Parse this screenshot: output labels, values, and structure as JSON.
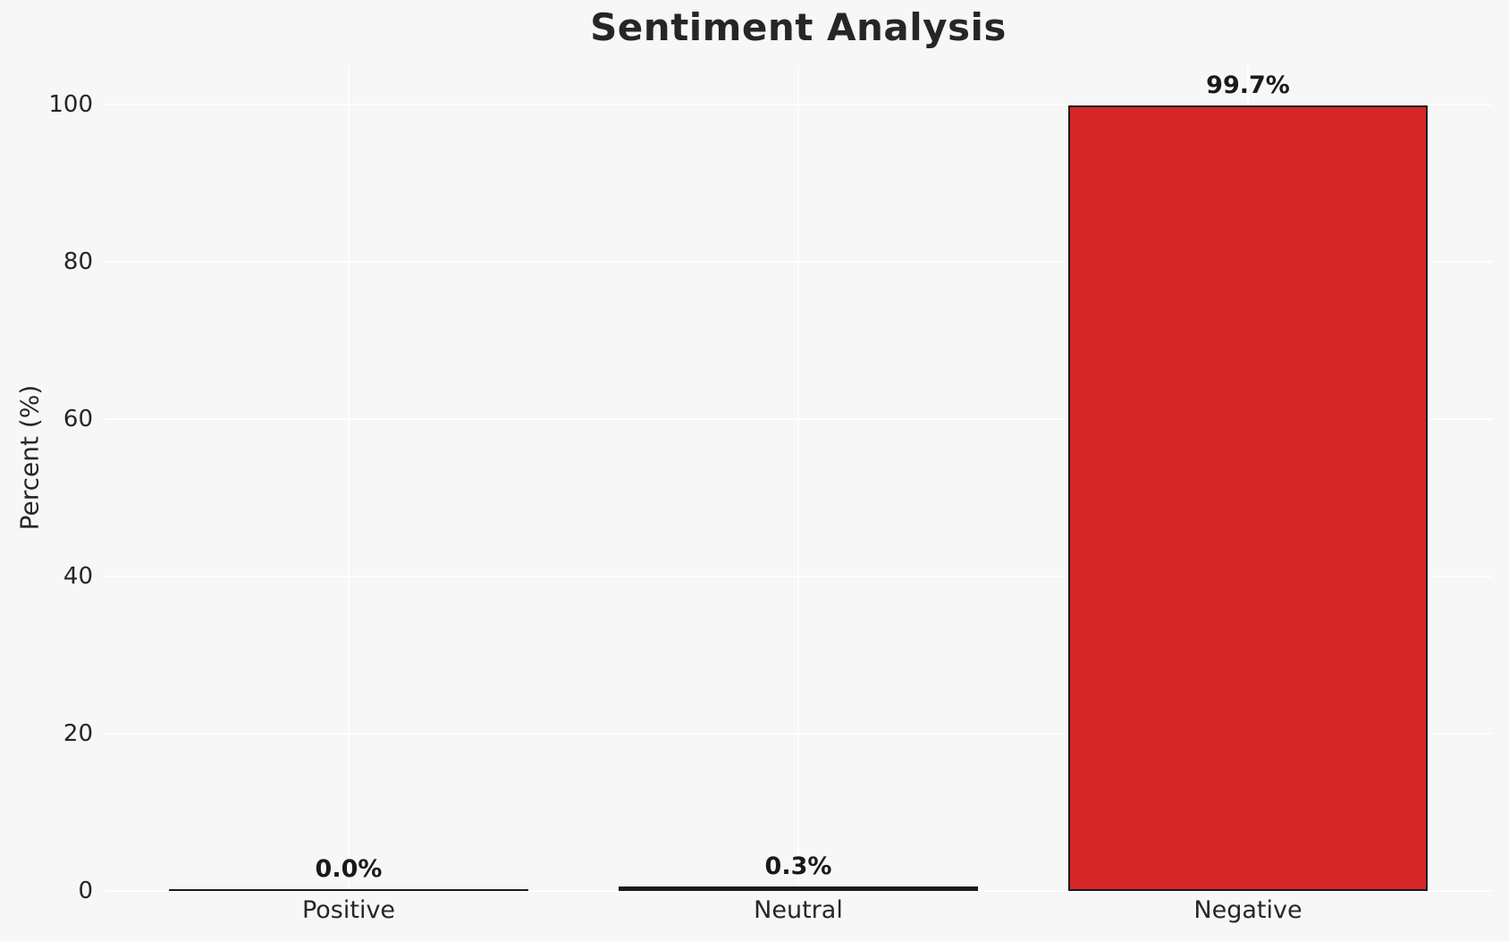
{
  "chart_data": {
    "type": "bar",
    "title": "Sentiment Analysis",
    "xlabel": "",
    "ylabel": "Percent (%)",
    "categories": [
      "Positive",
      "Neutral",
      "Negative"
    ],
    "values": [
      0.0,
      0.3,
      99.7
    ],
    "value_labels": [
      "0.0%",
      "0.3%",
      "99.7%"
    ],
    "yticks": [
      0,
      20,
      40,
      60,
      80,
      100
    ],
    "ylim": [
      0,
      105
    ],
    "grid": true,
    "legend": false,
    "bar_fill_colors": [
      "#1a1a1a",
      "#1a1a1a",
      "#d62728"
    ],
    "bar_edge_color": "#1a1a1a",
    "background_color": "#f7f7f7",
    "gridline_color": "#ffffff",
    "text_color": "#262626"
  }
}
